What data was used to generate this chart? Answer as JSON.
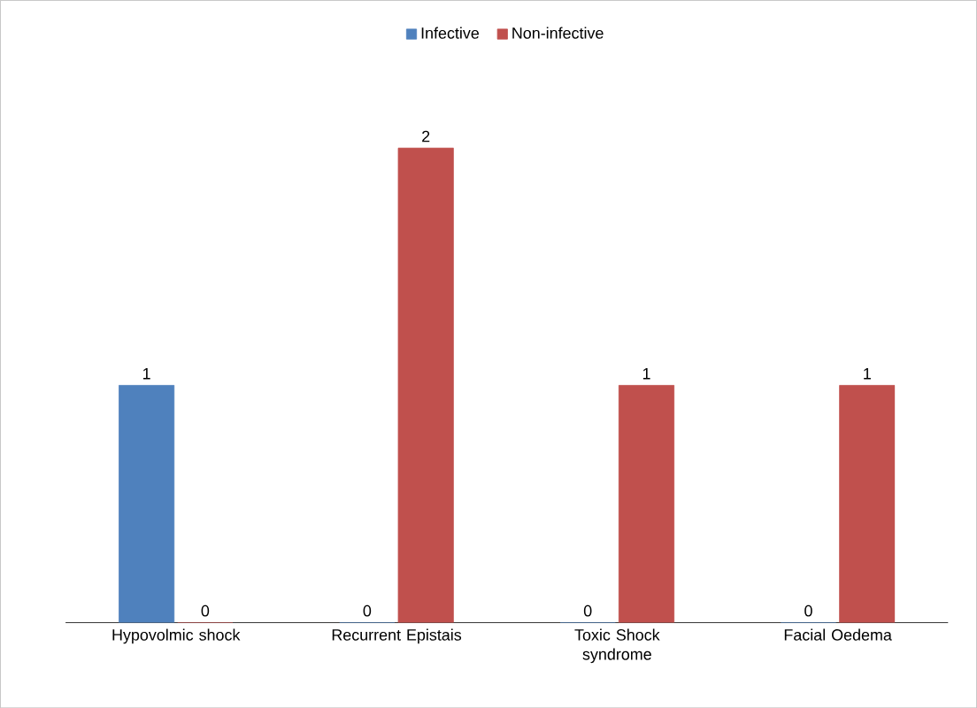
{
  "chart_data": {
    "type": "bar",
    "categories": [
      "Hypovolmic shock",
      "Recurrent Epistais",
      "Toxic Shock syndrome",
      "Facial Oedema"
    ],
    "series": [
      {
        "name": "Infective",
        "color": "#4f81bd",
        "values": [
          1,
          0,
          0,
          0
        ]
      },
      {
        "name": "Non-infective",
        "color": "#c0504d",
        "values": [
          0,
          2,
          1,
          1
        ]
      }
    ],
    "data_labels": true,
    "legend": "top"
  }
}
